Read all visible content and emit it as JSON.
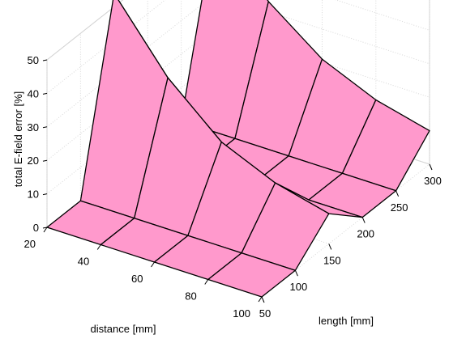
{
  "chart_data": {
    "type": "surface",
    "x": {
      "label": "distance [mm]",
      "ticks": [
        20,
        40,
        60,
        80,
        100
      ],
      "range": [
        20,
        100
      ],
      "values": [
        20,
        40,
        60,
        80,
        100
      ]
    },
    "y": {
      "label": "length [mm]",
      "ticks": [
        50,
        100,
        150,
        200,
        250,
        300
      ],
      "range": [
        50,
        300
      ],
      "values": [
        50,
        100,
        150,
        200,
        250,
        300
      ]
    },
    "z": {
      "label": "total E-field error [%]",
      "ticks": [
        0,
        10,
        20,
        30,
        40,
        50
      ],
      "range": [
        0,
        50
      ]
    },
    "values": [
      [
        0,
        0,
        0,
        0,
        0
      ],
      [
        0,
        0,
        0,
        0,
        0
      ],
      [
        54,
        34,
        20,
        13,
        9
      ],
      [
        0,
        0,
        0,
        0,
        0
      ],
      [
        0,
        0,
        0,
        0,
        0
      ],
      [
        51,
        33,
        21,
        14,
        10
      ]
    ],
    "grid": true,
    "face_color": "#ff99cc",
    "edge_color": "#000000"
  }
}
